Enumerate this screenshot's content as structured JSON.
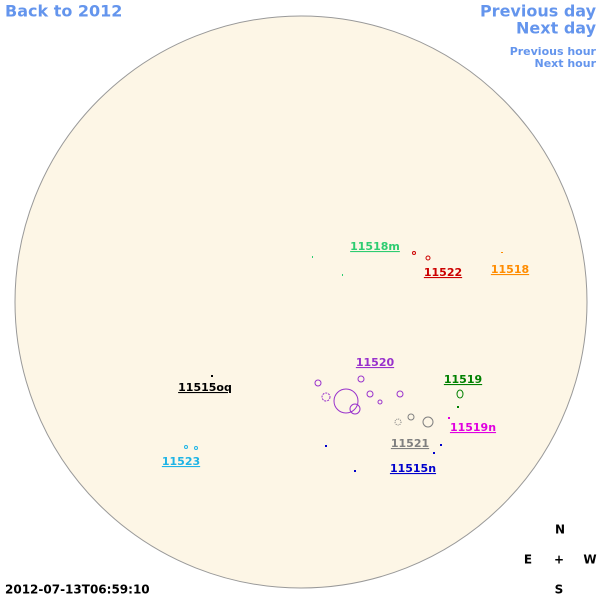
{
  "navigation": {
    "back": "Back to 2012",
    "previous_day": "Previous day",
    "next_day": "Next day",
    "previous_hour": "Previous hour",
    "next_hour": "Next hour"
  },
  "regions": [
    {
      "label": "11518m",
      "color": "#2ecc71"
    },
    {
      "label": "11522",
      "color": "#cc0000"
    },
    {
      "label": "11518",
      "color": "#ff8c00"
    },
    {
      "label": "11520",
      "color": "#9932cc"
    },
    {
      "label": "11515oq",
      "color": "#000000"
    },
    {
      "label": "11519",
      "color": "#008000"
    },
    {
      "label": "11519n",
      "color": "#e000e0"
    },
    {
      "label": "11521",
      "color": "#808080"
    },
    {
      "label": "11523",
      "color": "#1eb4e6"
    },
    {
      "label": "11515n",
      "color": "#0000cc"
    }
  ],
  "compass": {
    "north": "N",
    "east": "E",
    "center": "+",
    "west": "W",
    "south": "S"
  },
  "timestamp": "2012-07-13T06:59:10"
}
